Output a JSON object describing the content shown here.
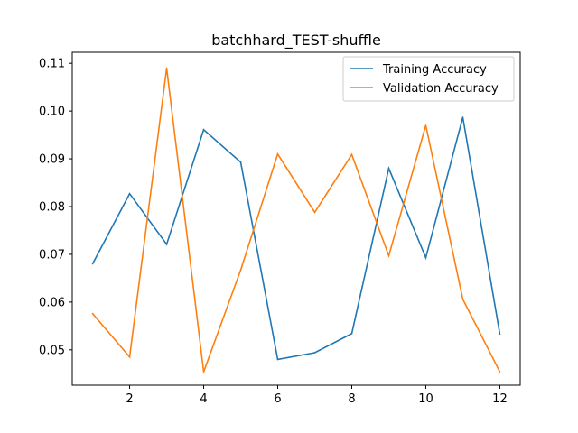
{
  "chart_data": {
    "type": "line",
    "title": "batchhard_TEST-shuffle",
    "xlabel": "",
    "ylabel": "",
    "x": [
      1,
      2,
      3,
      4,
      5,
      6,
      7,
      8,
      9,
      10,
      11,
      12
    ],
    "xlim": [
      0.45,
      12.55
    ],
    "ylim": [
      0.0426,
      0.1123
    ],
    "xticks": [
      2,
      4,
      6,
      8,
      10,
      12
    ],
    "yticks": [
      0.05,
      0.06,
      0.07,
      0.08,
      0.09,
      0.1,
      0.11
    ],
    "ytick_labels": [
      "0.05",
      "0.06",
      "0.07",
      "0.08",
      "0.09",
      "0.10",
      "0.11"
    ],
    "grid": false,
    "legend_position": "top-right",
    "series": [
      {
        "name": "Training Accuracy",
        "color": "#1f77b4",
        "values": [
          0.068,
          0.0827,
          0.0721,
          0.0961,
          0.0893,
          0.048,
          0.0494,
          0.0534,
          0.088,
          0.0693,
          0.0987,
          0.0533
        ]
      },
      {
        "name": "Validation Accuracy",
        "color": "#ff7f0e",
        "values": [
          0.0576,
          0.0485,
          0.109,
          0.0454,
          0.0667,
          0.091,
          0.0788,
          0.0909,
          0.0697,
          0.097,
          0.0606,
          0.0454
        ]
      }
    ]
  }
}
